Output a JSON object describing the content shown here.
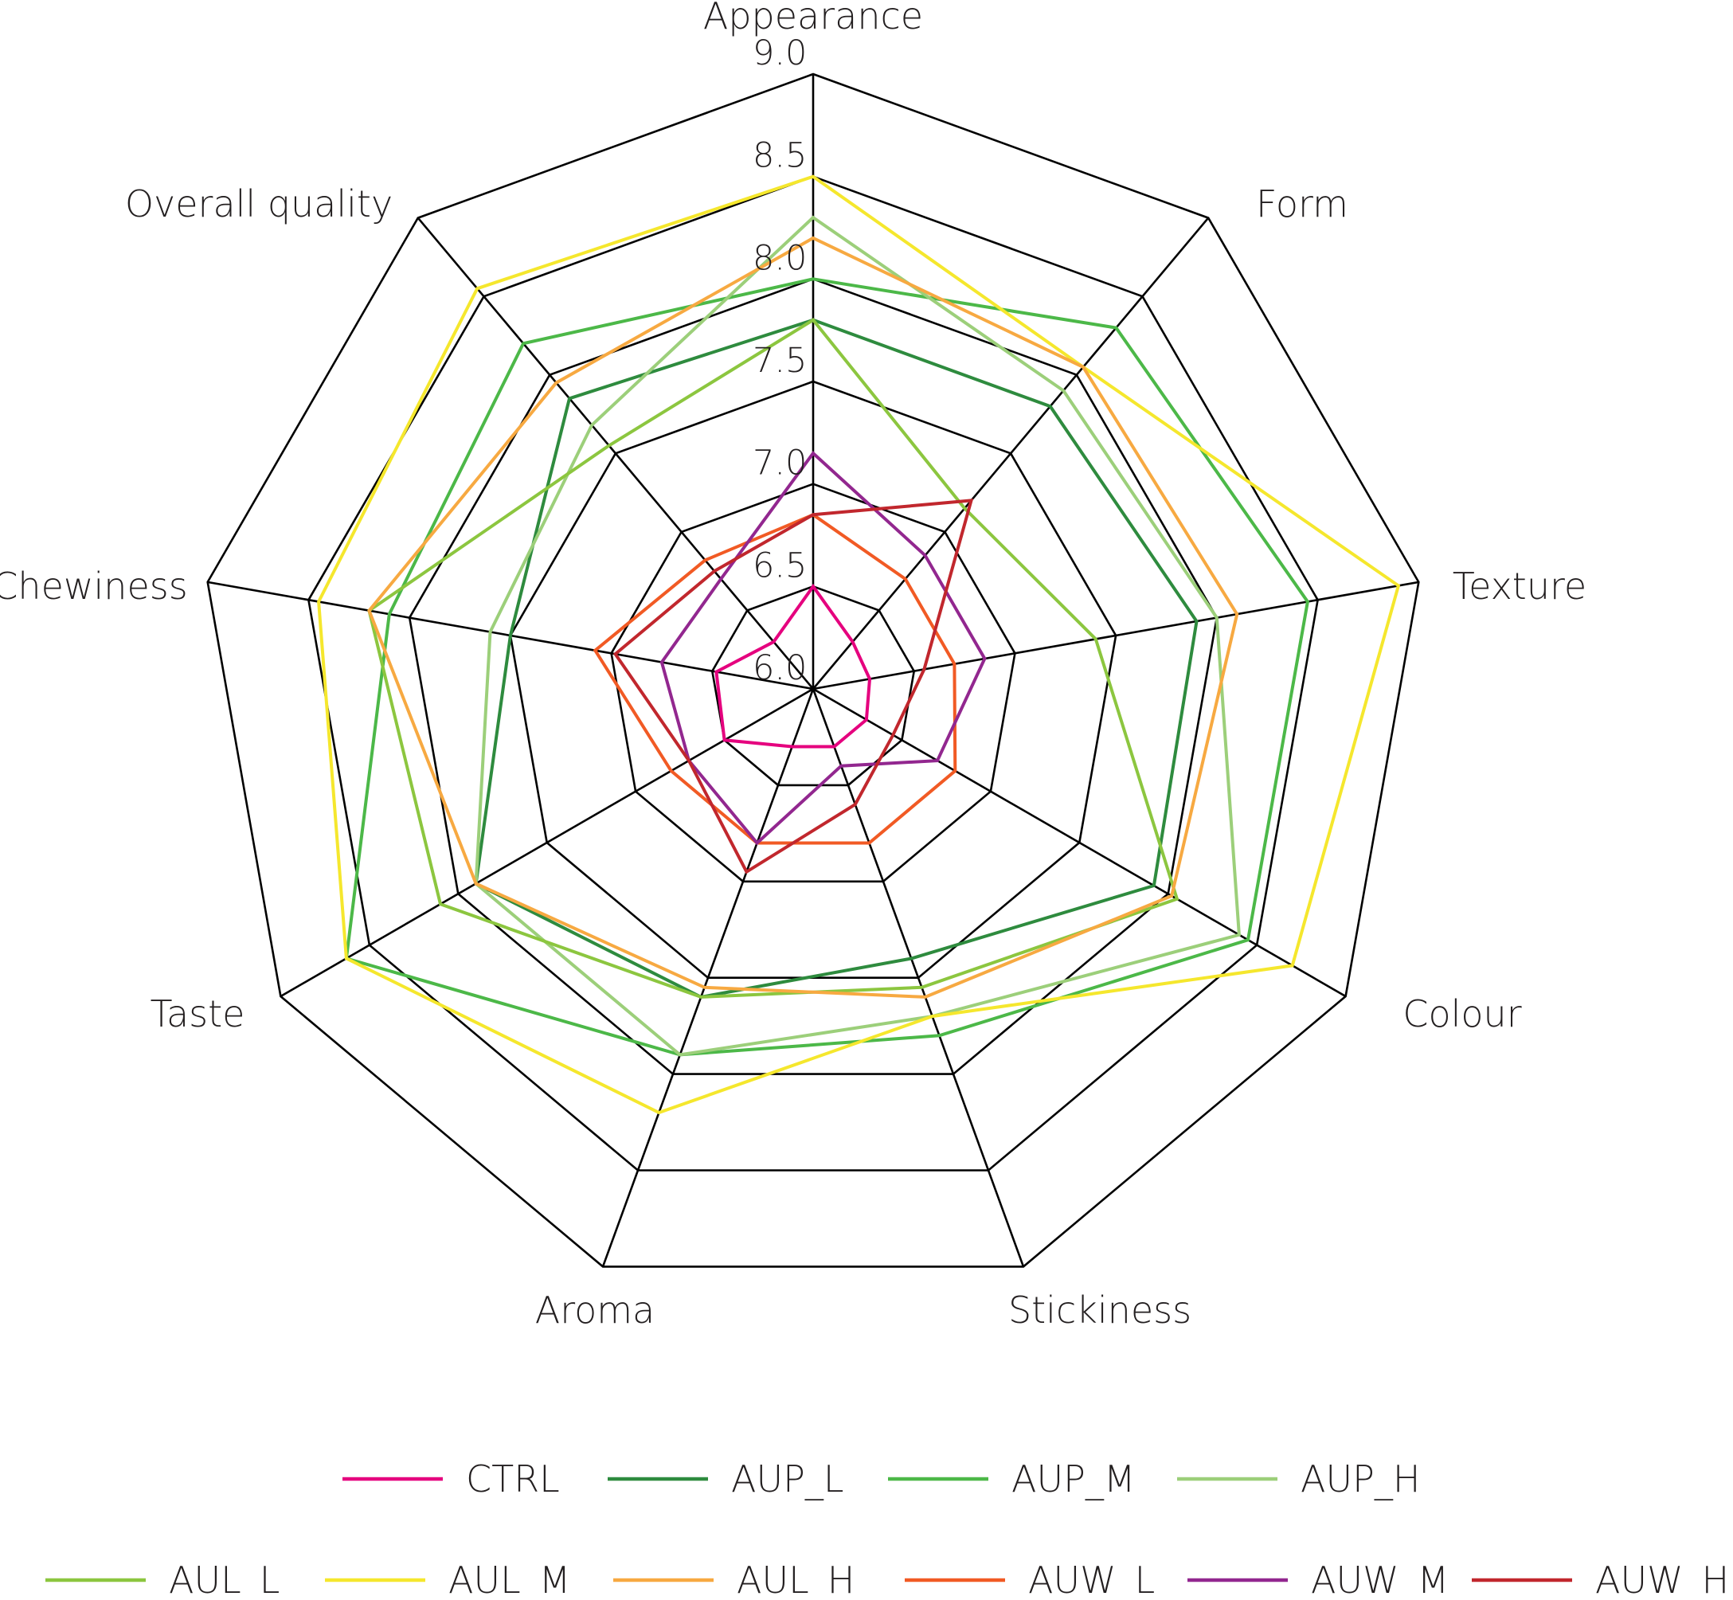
{
  "chart_data": {
    "type": "radar",
    "title": "",
    "axes": [
      "Appearance",
      "Form",
      "Texture",
      "Colour",
      "Stickiness",
      "Aroma",
      "Taste",
      "Chewiness",
      "Overall quality"
    ],
    "rlim": [
      6.0,
      9.0
    ],
    "ticks": [
      6.0,
      6.5,
      7.0,
      7.5,
      8.0,
      8.5,
      9.0
    ],
    "tick_labels": [
      "6.0",
      "6.5",
      "7.0",
      "7.5",
      "8.0",
      "8.5",
      "9.0"
    ],
    "grid": true,
    "legend_position": "bottom",
    "series": [
      {
        "name": "CTRL",
        "color": "#e5007e",
        "values": [
          6.5,
          6.3,
          6.28,
          6.3,
          6.3,
          6.3,
          6.5,
          6.48,
          6.3
        ]
      },
      {
        "name": "AUP_L",
        "color": "#2e8b3e",
        "values": [
          7.8,
          7.8,
          7.9,
          7.92,
          7.4,
          7.6,
          7.9,
          7.5,
          7.85
        ]
      },
      {
        "name": "AUP_M",
        "color": "#4cb848",
        "values": [
          8.0,
          8.3,
          8.45,
          8.45,
          7.8,
          7.9,
          8.63,
          8.1,
          8.2
        ]
      },
      {
        "name": "AUP_H",
        "color": "#9ccf7a",
        "values": [
          8.3,
          7.9,
          8.0,
          8.4,
          7.7,
          7.9,
          7.9,
          7.6,
          7.68
        ]
      },
      {
        "name": "AUL_L",
        "color": "#8cc63f",
        "values": [
          7.8,
          7.15,
          7.4,
          8.05,
          7.55,
          7.6,
          8.1,
          8.2,
          7.55
        ]
      },
      {
        "name": "AUL_M",
        "color": "#f5e72d",
        "values": [
          8.5,
          8.05,
          8.9,
          8.7,
          7.7,
          8.2,
          8.63,
          8.45,
          8.55
        ]
      },
      {
        "name": "AUL_H",
        "color": "#f7a941",
        "values": [
          8.2,
          8.05,
          8.1,
          8.02,
          7.6,
          7.55,
          7.9,
          8.2,
          7.95
        ]
      },
      {
        "name": "AUW_L",
        "color": "#f15a24",
        "values": [
          6.85,
          6.7,
          6.7,
          6.8,
          6.8,
          6.8,
          6.8,
          7.08,
          6.82
        ]
      },
      {
        "name": "AUW_M",
        "color": "#92278f",
        "values": [
          7.15,
          6.85,
          6.85,
          6.7,
          6.4,
          6.8,
          6.7,
          6.75,
          6.7
        ]
      },
      {
        "name": "AUW_H",
        "color": "#c1272d",
        "values": [
          6.85,
          7.2,
          6.55,
          6.45,
          6.6,
          6.95,
          6.7,
          6.98,
          6.75
        ]
      }
    ]
  }
}
